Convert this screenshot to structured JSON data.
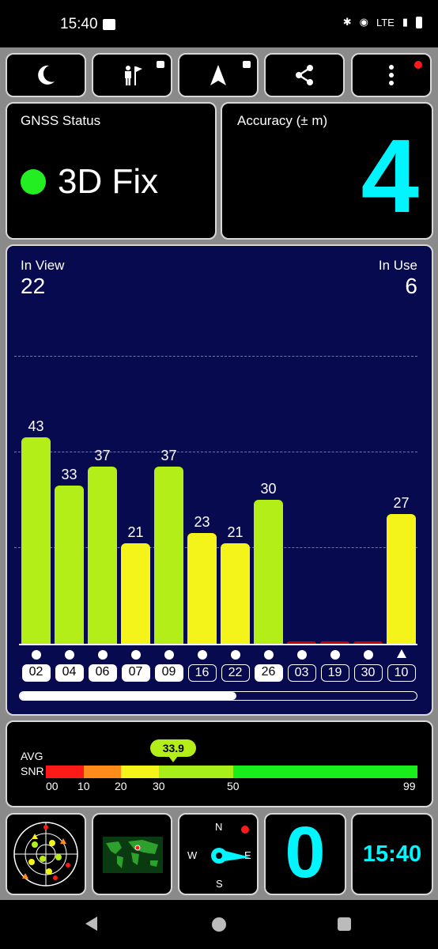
{
  "status_bar": {
    "time": "15:40",
    "network": "LTE"
  },
  "toolbar": {
    "icons": [
      "moon-icon",
      "person-flag-icon",
      "navigation-arrow-icon",
      "share-icon",
      "more-vert-icon"
    ]
  },
  "gnss": {
    "label": "GNSS Status",
    "status": "3D Fix",
    "indicator_color": "#22ee22"
  },
  "accuracy": {
    "label": "Accuracy (± m)",
    "value": "4",
    "color": "#00f5ff"
  },
  "satellites": {
    "in_view_label": "In View",
    "in_view": "22",
    "in_use_label": "In Use",
    "in_use": "6"
  },
  "chart_data": {
    "type": "bar",
    "categories": [
      "02",
      "04",
      "06",
      "07",
      "09",
      "16",
      "22",
      "26",
      "03",
      "19",
      "30",
      "10"
    ],
    "values": [
      43,
      33,
      37,
      21,
      37,
      23,
      21,
      30,
      0,
      0,
      0,
      27
    ],
    "labels": [
      "43",
      "33",
      "37",
      "21",
      "37",
      "23",
      "21",
      "30",
      "",
      "",
      "",
      "27"
    ],
    "in_use": [
      true,
      true,
      true,
      true,
      true,
      false,
      false,
      true,
      false,
      false,
      false,
      false
    ],
    "markers": [
      "dot",
      "dot",
      "dot",
      "dot",
      "dot",
      "dot",
      "dot",
      "dot",
      "dot",
      "dot",
      "dot",
      "triangle"
    ],
    "ylim": [
      0,
      60
    ],
    "colors": {
      "high": "#b4ee18",
      "mid": "#f4f41a",
      "low": "#cc0000"
    }
  },
  "snr": {
    "avg_label": "AVG",
    "snr_label": "SNR",
    "avg_value": "33.9",
    "ticks": [
      "00",
      "10",
      "20",
      "30",
      "50",
      "99"
    ],
    "segments": [
      {
        "from": 0,
        "to": 10,
        "color": "#ff1a1a"
      },
      {
        "from": 10,
        "to": 20,
        "color": "#ff8c1a"
      },
      {
        "from": 20,
        "to": 30,
        "color": "#f4f41a"
      },
      {
        "from": 30,
        "to": 50,
        "color": "#a8ee18"
      },
      {
        "from": 50,
        "to": 99,
        "color": "#1aee1a"
      }
    ]
  },
  "bottom": {
    "compass_labels": {
      "n": "N",
      "e": "E",
      "s": "S",
      "w": "W"
    },
    "speed": "0",
    "clock": "15:40",
    "accent": "#00f5ff"
  }
}
